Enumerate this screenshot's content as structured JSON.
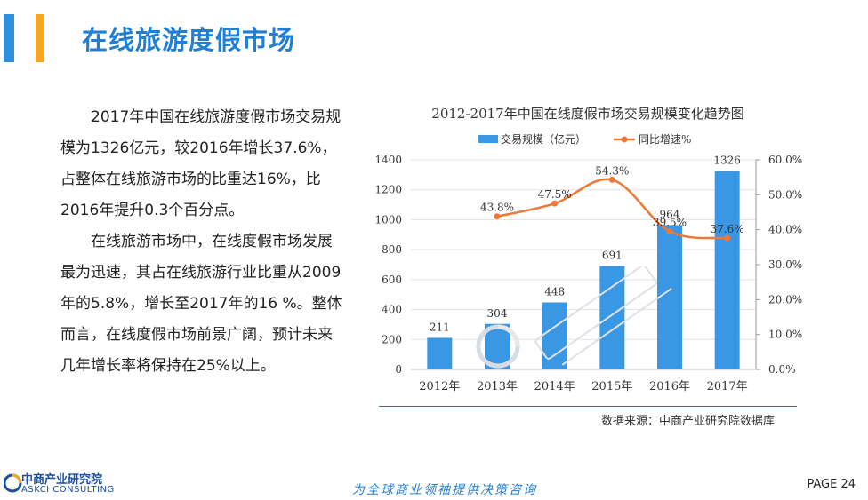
{
  "page": {
    "title": "在线旅游度假市场",
    "page_number": "PAGE 24",
    "slogan": "为全球商业领袖提供决策咨询",
    "logo_cn": "中商产业研究院",
    "logo_en": "ASKCI CONSULTING",
    "source": "数据来源：中商产业研究院数据库"
  },
  "body": {
    "paragraph1": "2017年中国在线旅游度假市场交易规模为1326亿元，较2016年增长37.6%，占整体在线旅游市场的比重达16%，比2016年提升0.3个百分点。",
    "paragraph2": "在线旅游市场中，在线度假市场发展最为迅速，其占在线旅游行业比重从2009年的5.8%，增长至2017年的16 %。整体而言，在线度假市场前景广阔，预计未来几年增长率将保持在25%以上。"
  },
  "colors": {
    "bar": "#3a97e3",
    "line": "#f07836",
    "title": "#1f7fd6",
    "accent_orange": "#f5a623"
  },
  "chart_data": {
    "type": "bar",
    "title": "2012-2017年中国在线度假市场交易规模变化趋势图",
    "categories": [
      "2012年",
      "2013年",
      "2014年",
      "2015年",
      "2016年",
      "2017年"
    ],
    "series": [
      {
        "name": "交易规模（亿元）",
        "type": "bar",
        "axis": "left",
        "values": [
          211,
          304,
          448,
          691,
          964,
          1326
        ]
      },
      {
        "name": "同比增速%",
        "type": "line",
        "axis": "right",
        "values": [
          null,
          43.8,
          47.5,
          54.3,
          39.5,
          37.6
        ],
        "labels": [
          "",
          "43.8%",
          "47.5%",
          "54.3%",
          "39.5%",
          "37.6%"
        ]
      }
    ],
    "ylim_left": [
      0,
      1400
    ],
    "yticks_left": [
      "0",
      "200",
      "400",
      "600",
      "800",
      "1000",
      "1200",
      "1400"
    ],
    "ylim_right": [
      0,
      60
    ],
    "yticks_right": [
      "0.0%",
      "10.0%",
      "20.0%",
      "30.0%",
      "40.0%",
      "50.0%",
      "60.0%"
    ],
    "grid": true,
    "legend": "top-center"
  }
}
